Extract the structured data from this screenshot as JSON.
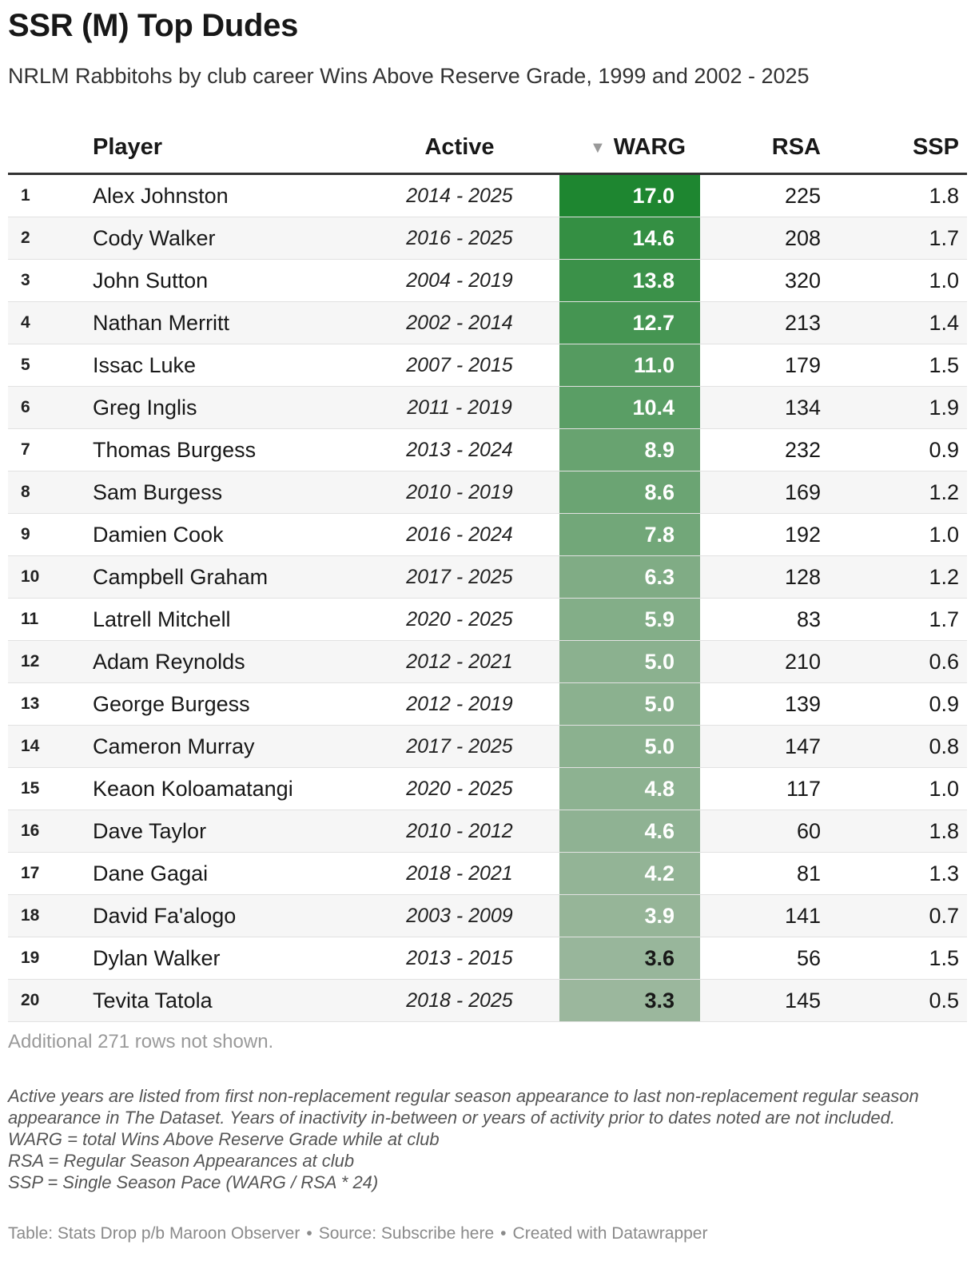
{
  "title": "SSR (M) Top Dudes",
  "subtitle": "NRLM Rabbitohs by club career Wins Above Reserve Grade, 1999 and 2002 - 2025",
  "colors": {
    "warg_high": "#1e8630",
    "warg_low": "#9bb79d",
    "text_dark": "#181818"
  },
  "sort_icon": "sort-descending-triangle",
  "chart_data": {
    "type": "table",
    "sort_column": "WARG",
    "sort_order": "descending",
    "columns": [
      "",
      "Player",
      "Active",
      "WARG",
      "RSA",
      "SSP"
    ],
    "rows": [
      {
        "rank": "1",
        "player": "Alex Johnston",
        "active": "2014 - 2025",
        "warg": "17.0",
        "rsa": "225",
        "ssp": "1.8"
      },
      {
        "rank": "2",
        "player": "Cody Walker",
        "active": "2016 - 2025",
        "warg": "14.6",
        "rsa": "208",
        "ssp": "1.7"
      },
      {
        "rank": "3",
        "player": "John Sutton",
        "active": "2004 - 2019",
        "warg": "13.8",
        "rsa": "320",
        "ssp": "1.0"
      },
      {
        "rank": "4",
        "player": "Nathan Merritt",
        "active": "2002 - 2014",
        "warg": "12.7",
        "rsa": "213",
        "ssp": "1.4"
      },
      {
        "rank": "5",
        "player": "Issac Luke",
        "active": "2007 - 2015",
        "warg": "11.0",
        "rsa": "179",
        "ssp": "1.5"
      },
      {
        "rank": "6",
        "player": "Greg Inglis",
        "active": "2011 - 2019",
        "warg": "10.4",
        "rsa": "134",
        "ssp": "1.9"
      },
      {
        "rank": "7",
        "player": "Thomas Burgess",
        "active": "2013 - 2024",
        "warg": "8.9",
        "rsa": "232",
        "ssp": "0.9"
      },
      {
        "rank": "8",
        "player": "Sam Burgess",
        "active": "2010 - 2019",
        "warg": "8.6",
        "rsa": "169",
        "ssp": "1.2"
      },
      {
        "rank": "9",
        "player": "Damien Cook",
        "active": "2016 - 2024",
        "warg": "7.8",
        "rsa": "192",
        "ssp": "1.0"
      },
      {
        "rank": "10",
        "player": "Campbell Graham",
        "active": "2017 - 2025",
        "warg": "6.3",
        "rsa": "128",
        "ssp": "1.2"
      },
      {
        "rank": "11",
        "player": "Latrell Mitchell",
        "active": "2020 - 2025",
        "warg": "5.9",
        "rsa": "83",
        "ssp": "1.7"
      },
      {
        "rank": "12",
        "player": "Adam Reynolds",
        "active": "2012 - 2021",
        "warg": "5.0",
        "rsa": "210",
        "ssp": "0.6"
      },
      {
        "rank": "13",
        "player": "George Burgess",
        "active": "2012 - 2019",
        "warg": "5.0",
        "rsa": "139",
        "ssp": "0.9"
      },
      {
        "rank": "14",
        "player": "Cameron Murray",
        "active": "2017 - 2025",
        "warg": "5.0",
        "rsa": "147",
        "ssp": "0.8"
      },
      {
        "rank": "15",
        "player": "Keaon Koloamatangi",
        "active": "2020 - 2025",
        "warg": "4.8",
        "rsa": "117",
        "ssp": "1.0"
      },
      {
        "rank": "16",
        "player": "Dave Taylor",
        "active": "2010 - 2012",
        "warg": "4.6",
        "rsa": "60",
        "ssp": "1.8"
      },
      {
        "rank": "17",
        "player": "Dane Gagai",
        "active": "2018 - 2021",
        "warg": "4.2",
        "rsa": "81",
        "ssp": "1.3"
      },
      {
        "rank": "18",
        "player": "David Fa'alogo",
        "active": "2003 - 2009",
        "warg": "3.9",
        "rsa": "141",
        "ssp": "0.7"
      },
      {
        "rank": "19",
        "player": "Dylan Walker",
        "active": "2013 - 2015",
        "warg": "3.6",
        "rsa": "56",
        "ssp": "1.5"
      },
      {
        "rank": "20",
        "player": "Tevita Tatola",
        "active": "2018 - 2025",
        "warg": "3.3",
        "rsa": "145",
        "ssp": "0.5"
      }
    ]
  },
  "more_rows": "Additional 271 rows not shown.",
  "notes": [
    "Active years are listed from first non-replacement regular season appearance to last non-replacement regular season appearance in The Dataset. Years of inactivity in-between or years of activity prior to dates noted are not included.",
    "WARG = total Wins Above Reserve Grade while at club",
    "RSA = Regular Season Appearances at club",
    "SSP = Single Season Pace (WARG / RSA * 24)"
  ],
  "credit": {
    "table": "Table: Stats Drop p/b Maroon Observer",
    "source": "Source: Subscribe here",
    "created": "Created with Datawrapper"
  }
}
